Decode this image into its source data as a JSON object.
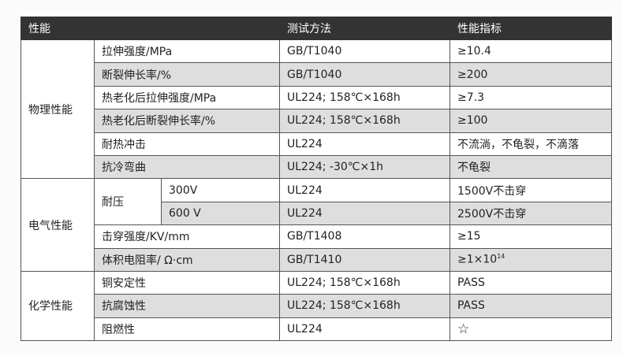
{
  "headers": [
    "性能",
    "测试方法",
    "性能指标"
  ],
  "groups": {
    "physical": "物理性能",
    "electrical": "电气性能",
    "chemical": "化学性能",
    "voltage": "耐压"
  },
  "rows": [
    {
      "item": "拉伸强度/MPa",
      "method": "GB/T1040",
      "value": "≥10.4"
    },
    {
      "item": "断裂伸长率/%",
      "method": "GB/T1040",
      "value": "≥200"
    },
    {
      "item": "热老化后拉伸强度/MPa",
      "method": "UL224; 158℃×168h",
      "value": "≥7.3"
    },
    {
      "item": "热老化后断裂伸长率/%",
      "method": "UL224; 158℃×168h",
      "value": "≥100"
    },
    {
      "item": "耐热冲击",
      "method": "UL224",
      "value": "不流淌，不龟裂，不滴落"
    },
    {
      "item": "抗冷弯曲",
      "method": "UL224; -30℃×1h",
      "value": "不龟裂"
    },
    {
      "item": "300V",
      "method": "UL224",
      "value": "1500V不击穿"
    },
    {
      "item": "600 V",
      "method": "UL224",
      "value": "2500V不击穿"
    },
    {
      "item": "击穿强度/KV/mm",
      "method": "GB/T1408",
      "value": "≥15"
    },
    {
      "item": "体积电阻率/ Ω·cm",
      "method": "GB/T1410",
      "value": "≥1×10",
      "sup": "14"
    },
    {
      "item": "铜安定性",
      "method": "UL224; 158℃×168h",
      "value": "PASS"
    },
    {
      "item": "抗腐蚀性",
      "method": "UL224; 158℃×168h",
      "value": "PASS"
    },
    {
      "item": "阻燃性",
      "method": "UL224",
      "value": "☆"
    }
  ]
}
